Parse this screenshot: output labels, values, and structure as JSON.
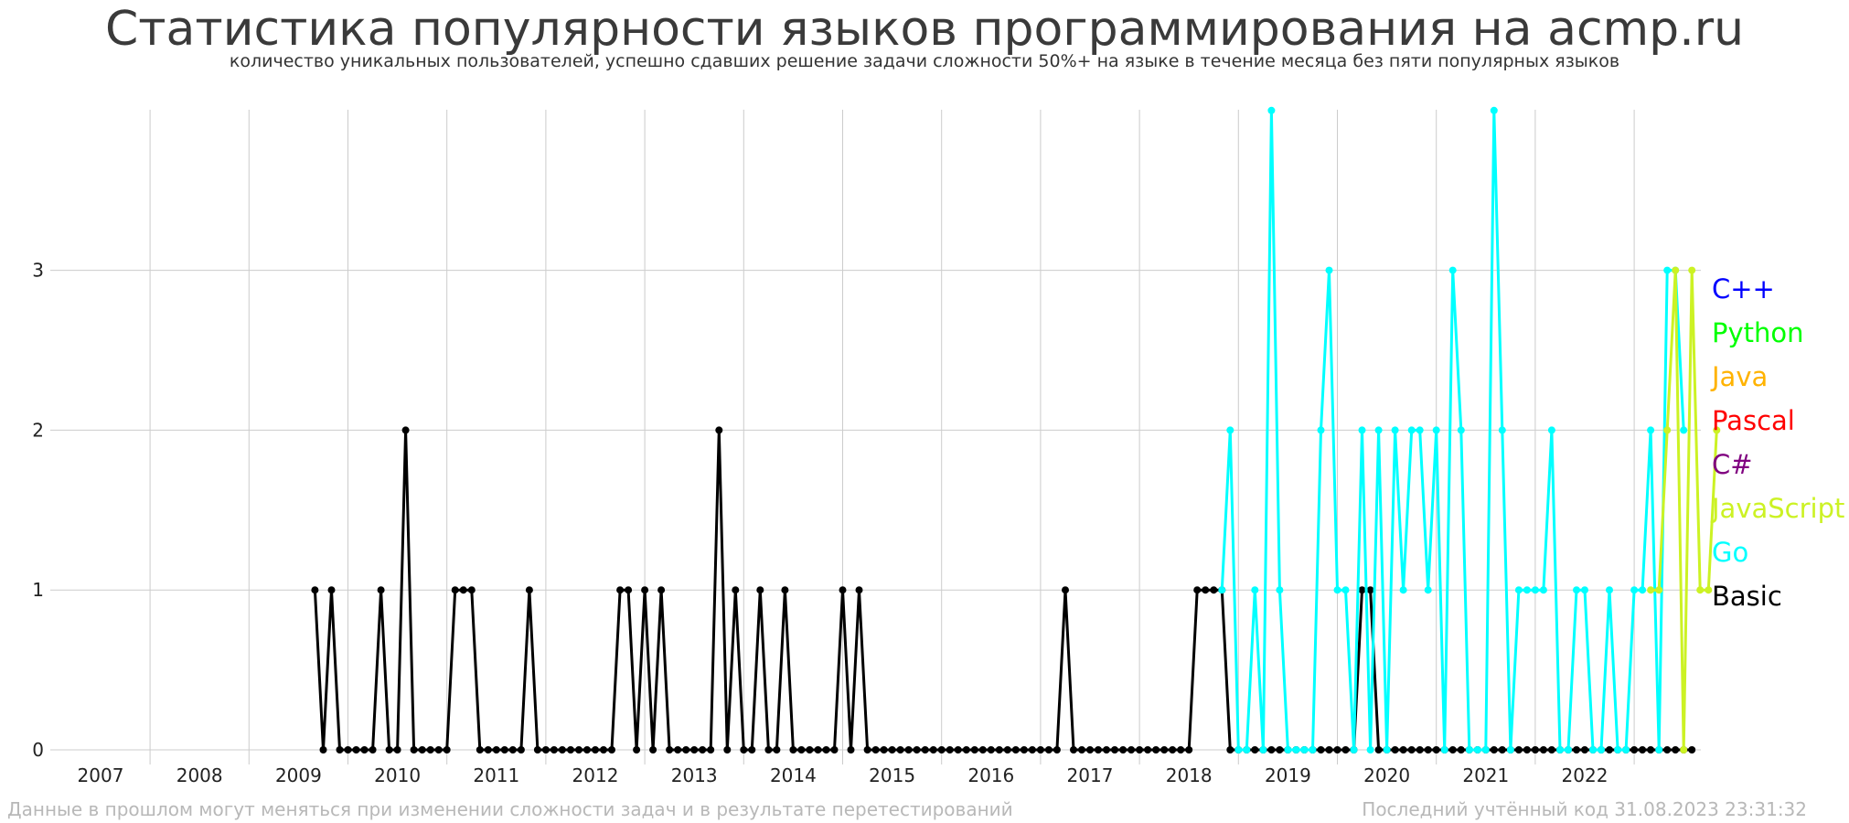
{
  "chart_data": {
    "type": "line",
    "title": "Статистика популярности языков программирования на acmp.ru",
    "subtitle": "количество уникальных пользователей, успешно сдавших решение задачи сложности 50%+ на языке в течение месяца без пяти популярных языков",
    "xlabel": "",
    "ylabel": "",
    "x_ticks": [
      "2007",
      "2008",
      "2009",
      "2010",
      "2011",
      "2012",
      "2013",
      "2014",
      "2015",
      "2016",
      "2017",
      "2018",
      "2019",
      "2020",
      "2021",
      "2022"
    ],
    "y_ticks": [
      "0",
      "1",
      "2",
      "3"
    ],
    "ylim": [
      0,
      4
    ],
    "grid": true,
    "legend_position": "right",
    "legend": [
      {
        "name": "C++",
        "color": "#0000ff"
      },
      {
        "name": "Python",
        "color": "#00ff00"
      },
      {
        "name": "Java",
        "color": "#ffb300"
      },
      {
        "name": "Pascal",
        "color": "#ff0000"
      },
      {
        "name": "C#",
        "color": "#800080"
      },
      {
        "name": "JavaScript",
        "color": "#ccf224"
      },
      {
        "name": "Go",
        "color": "#00ffff"
      },
      {
        "name": "Basic",
        "color": "#000000"
      }
    ],
    "series": [
      {
        "name": "Basic",
        "color": "#000000",
        "start": "2009-03",
        "values": [
          1,
          0,
          1,
          0,
          0,
          0,
          0,
          0,
          1,
          0,
          0,
          2,
          0,
          0,
          0,
          0,
          0,
          1,
          1,
          1,
          0,
          0,
          0,
          0,
          0,
          0,
          1,
          0,
          0,
          0,
          0,
          0,
          0,
          0,
          0,
          0,
          0,
          1,
          1,
          0,
          1,
          0,
          1,
          0,
          0,
          0,
          0,
          0,
          0,
          2,
          0,
          1,
          0,
          0,
          1,
          0,
          0,
          1,
          0,
          0,
          0,
          0,
          0,
          0,
          1,
          0,
          1,
          0,
          0,
          0,
          0,
          0,
          0,
          0,
          0,
          0,
          0,
          0,
          0,
          0,
          0,
          0,
          0,
          0,
          0,
          0,
          0,
          0,
          0,
          0,
          0,
          1,
          0,
          0,
          0,
          0,
          0,
          0,
          0,
          0,
          0,
          0,
          0,
          0,
          0,
          0,
          0,
          1,
          1,
          1,
          1,
          0,
          0,
          0,
          0,
          0,
          0,
          0,
          0,
          0,
          0,
          0,
          0,
          0,
          0,
          0,
          0,
          1,
          1,
          0,
          0,
          0,
          0,
          0,
          0,
          0,
          0,
          0,
          0,
          0,
          0,
          0,
          0,
          0,
          0,
          0,
          0,
          0,
          0,
          0,
          0,
          0,
          0,
          0,
          0,
          0,
          0,
          0,
          0,
          0,
          0,
          0,
          0,
          0,
          0,
          0,
          0,
          0
        ]
      },
      {
        "name": "Go",
        "color": "#00ffff",
        "start": "2018-05",
        "values": [
          1,
          2,
          0,
          0,
          1,
          0,
          4,
          1,
          0,
          0,
          0,
          0,
          2,
          3,
          1,
          1,
          0,
          2,
          0,
          2,
          0,
          2,
          1,
          2,
          2,
          1,
          2,
          0,
          3,
          2,
          0,
          0,
          0,
          4,
          2,
          0,
          1,
          1,
          1,
          1,
          2,
          0,
          0,
          1,
          1,
          0,
          0,
          1,
          0,
          0,
          1,
          1,
          2,
          0,
          3,
          3,
          2
        ]
      },
      {
        "name": "JavaScript",
        "color": "#ccf224",
        "start": "2022-09",
        "values": [
          1,
          1,
          2,
          3,
          0,
          3,
          1,
          1,
          2
        ]
      }
    ]
  },
  "footer": {
    "left": "Данные в прошлом могут меняться при изменении сложности задач и в результате перетестирований",
    "right": "Последний учтённый код 31.08.2023 23:31:32"
  }
}
